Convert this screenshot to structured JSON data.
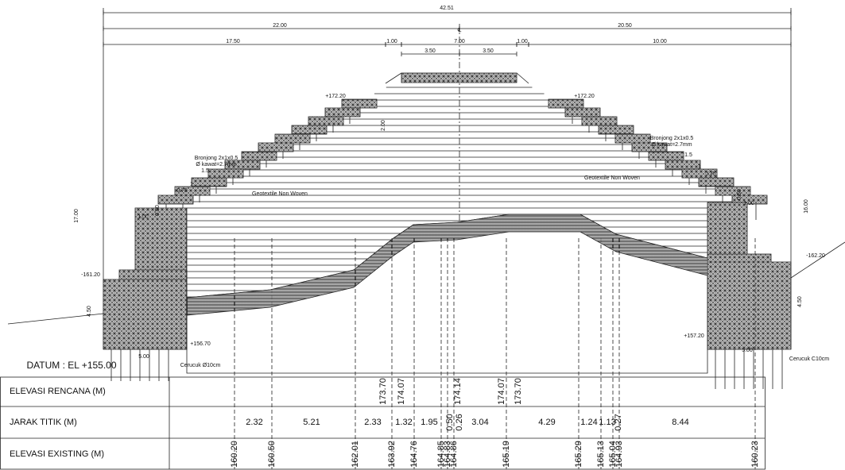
{
  "annotations": [
    "42.51",
    "22.00",
    "20.50",
    "17.50",
    "1.00",
    "7.00",
    "1.00",
    "10.00",
    "3.50",
    "3.50",
    "℄",
    "+172.20",
    "+172.20",
    "2.00",
    "Bronjong 2x1x0.5",
    "Ø kawat=2.7mm",
    "1.5",
    "1",
    "0.75",
    "Geotextile Non Woven",
    "1.00",
    "0.50",
    "17.00",
    "-161.20",
    "4.50",
    "+156.70",
    "5.00",
    "Cerucuk Ø10cm",
    "DATUM : EL  +155.00",
    "Bronjong 2x1x0.5",
    "Ø kawat=2.7mm",
    "1.5",
    "1",
    "0.75",
    "Geotextile Non Woven",
    "0.50",
    "1.00",
    "16.00",
    "-162.20",
    "4.50",
    "+157.20",
    "5.00",
    "Cerucuk C10cm"
  ],
  "table": {
    "rows": [
      {
        "label": "ELEVASI RENCANA (M)",
        "values": [
          "173.70",
          "174.07",
          "174.14",
          "174.07",
          "173.70"
        ]
      },
      {
        "label": "JARAK TITIK (M)",
        "values": [
          "2.32",
          "5.21",
          "2.33",
          "1.32",
          "1.95",
          "0.50",
          "0.26",
          "3.04",
          "4.29",
          "1.24",
          "1.13",
          "0.27",
          "8.44"
        ]
      },
      {
        "label": "ELEVASI EXISTING (M)",
        "values": [
          "160.20",
          "160.50",
          "162.01",
          "163.92",
          "164.76",
          "164.85",
          "164.83",
          "164.86",
          "165.19",
          "165.29",
          "165.13",
          "165.04",
          "164.93",
          "160.23"
        ]
      }
    ]
  }
}
